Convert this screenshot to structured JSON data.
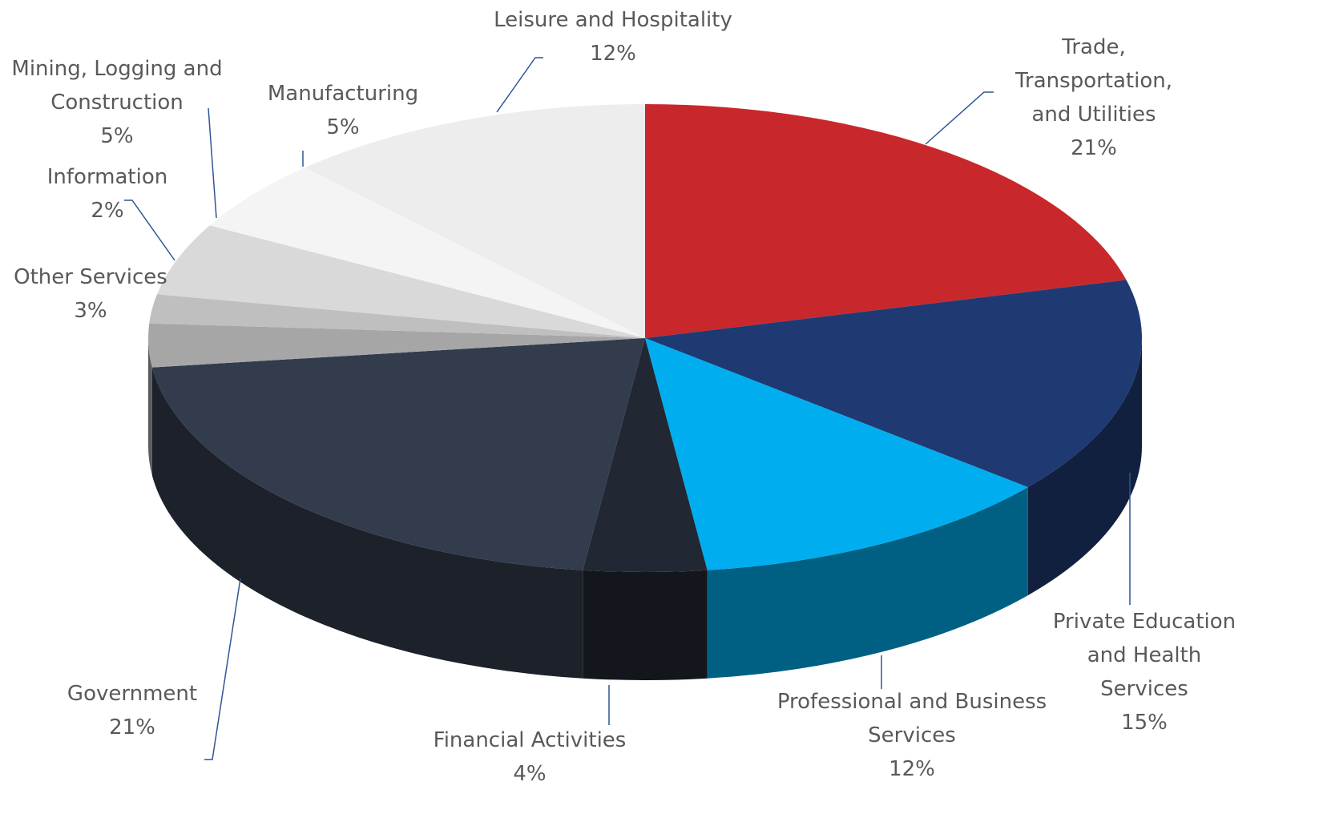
{
  "chart_data": {
    "type": "pie3d",
    "categories": [
      "Trade, Transportation, and Utilities",
      "Private Education and Health Services",
      "Professional and Business Services",
      "Financial Activities",
      "Government",
      "Other Services",
      "Information",
      "Mining, Logging and Construction",
      "Manufacturing",
      "Leisure and Hospitality"
    ],
    "values": [
      21,
      15,
      12,
      4,
      21,
      3,
      2,
      5,
      5,
      12
    ],
    "value_labels": [
      "21%",
      "15%",
      "12%",
      "4%",
      "21%",
      "3%",
      "2%",
      "5%",
      "5%",
      "12%"
    ],
    "colors": [
      "#c8282b",
      "#1f3a73",
      "#00aeef",
      "#222833",
      "#323c4d",
      "#a6a6a6",
      "#bfbfbf",
      "#d9d9d9",
      "#f4f4f4",
      "#ededed"
    ]
  }
}
